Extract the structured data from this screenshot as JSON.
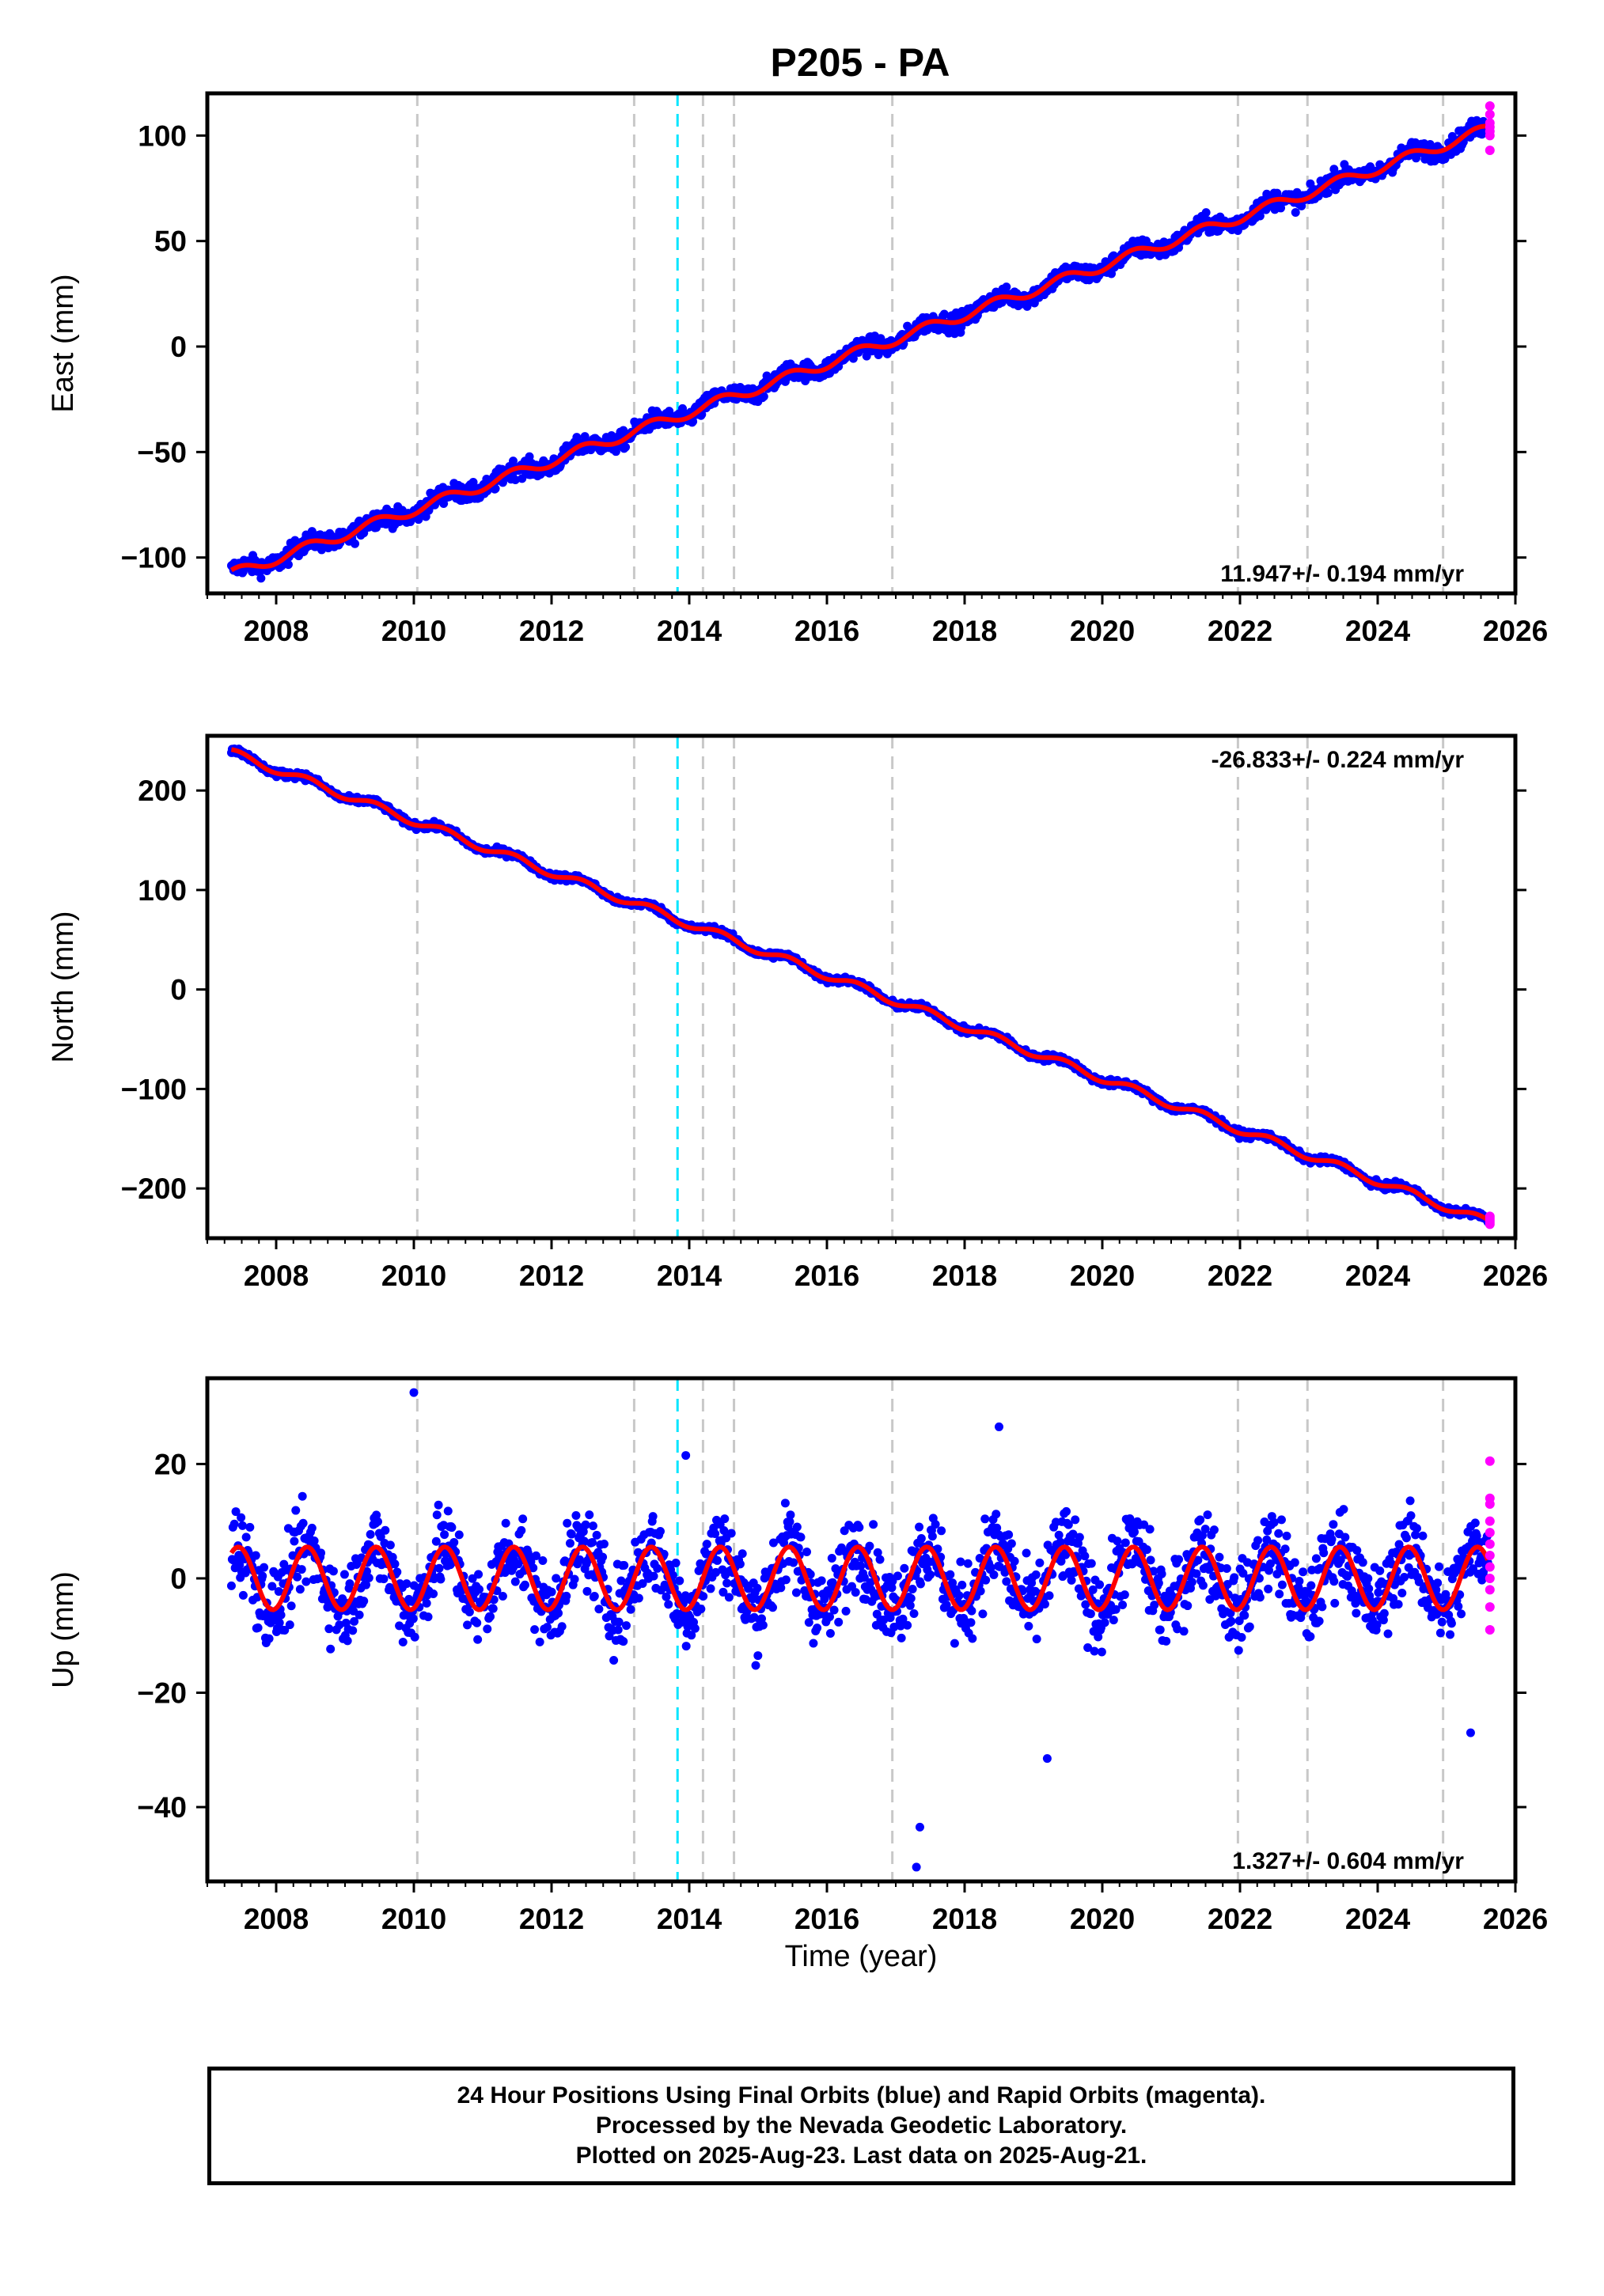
{
  "title": "P205 - PA",
  "colors": {
    "final_points": "#0000ff",
    "rapid_points": "#ff00ff",
    "model": "#ff0000",
    "equipment_change": "#c8c8c8",
    "earthquake": "#00e5ff"
  },
  "x_axis": {
    "label": "Time (year)",
    "range": [
      2007.0,
      2026.0
    ],
    "ticks": [
      2008,
      2010,
      2012,
      2014,
      2016,
      2018,
      2020,
      2022,
      2024,
      2026
    ]
  },
  "vertical_lines": {
    "gray": [
      2010.05,
      2013.2,
      2014.2,
      2014.65,
      2016.95,
      2021.97,
      2022.98,
      2024.95
    ],
    "cyan": [
      2013.83
    ]
  },
  "chart_data": [
    {
      "type": "scatter",
      "ylabel": "East (mm)",
      "ylim": [
        -117,
        120
      ],
      "yticks": [
        100,
        50,
        0,
        -50,
        -100
      ],
      "rate_text": "11.947+/- 0.194 mm/yr",
      "x_range": [
        2007.35,
        2025.6
      ],
      "trend": {
        "start": -108,
        "end": 103
      },
      "annual_amplitude": 2.5,
      "noise": 3,
      "rapid": {
        "x": 2025.63,
        "values": [
          114,
          110,
          106,
          104,
          102,
          100,
          93
        ]
      }
    },
    {
      "type": "scatter",
      "ylabel": "North (mm)",
      "ylim": [
        -250,
        255
      ],
      "yticks": [
        200,
        100,
        0,
        -100,
        -200
      ],
      "rate_text": "-26.833+/- 0.224 mm/yr",
      "x_range": [
        2007.35,
        2025.6
      ],
      "trend": {
        "start": 238,
        "end": -234
      },
      "annual_amplitude": 4,
      "noise": 2.5,
      "rapid": {
        "x": 2025.63,
        "values": [
          -228,
          -230,
          -232,
          -234,
          -236
        ]
      }
    },
    {
      "type": "scatter",
      "ylabel": "Up (mm)",
      "ylim": [
        -53,
        35
      ],
      "yticks": [
        20,
        0,
        -20,
        -40
      ],
      "rate_text": "1.327+/- 0.604 mm/yr",
      "x_range": [
        2007.35,
        2025.6
      ],
      "trend": {
        "start": 0,
        "end": 0
      },
      "annual_amplitude": 5.5,
      "noise": 5,
      "outliers": [
        [
          2010.0,
          32.5
        ],
        [
          2013.95,
          21.5
        ],
        [
          2018.5,
          26.5
        ],
        [
          2017.35,
          -43.5
        ],
        [
          2017.3,
          -50.5
        ],
        [
          2019.2,
          -31.5
        ],
        [
          2025.35,
          -27
        ]
      ],
      "rapid": {
        "x": 2025.63,
        "values": [
          20.5,
          14,
          13,
          10,
          8,
          6,
          4,
          2,
          0,
          -2,
          -5,
          -9
        ]
      }
    }
  ],
  "footer": {
    "line1": "24 Hour Positions Using Final Orbits (blue) and Rapid Orbits (magenta).",
    "line2": "Processed by the Nevada Geodetic Laboratory.",
    "line3": "Plotted on 2025-Aug-23. Last data on 2025-Aug-21."
  }
}
